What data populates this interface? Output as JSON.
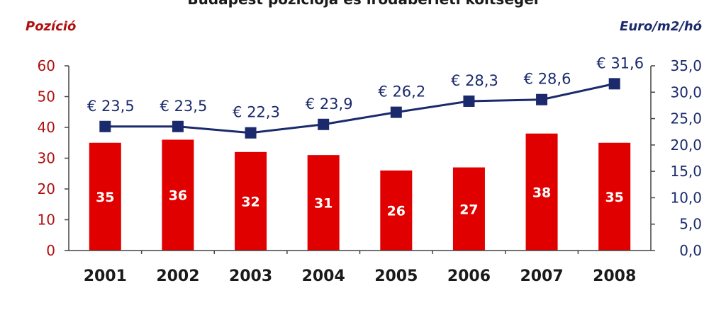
{
  "colors": {
    "bar": "#e00000",
    "line": "#1a2a6c",
    "left_axis_text": "#b01010",
    "right_axis_text": "#1a2a6c",
    "category_text": "#1a1a1a"
  },
  "chart_data": {
    "type": "bar",
    "title": "Budapest pozíciója és irodabérleti költségei",
    "categories": [
      "2001",
      "2002",
      "2003",
      "2004",
      "2005",
      "2006",
      "2007",
      "2008"
    ],
    "series": [
      {
        "name": "Pozíció",
        "type": "bar",
        "axis": "left",
        "values": [
          35,
          36,
          32,
          31,
          26,
          27,
          38,
          35
        ],
        "value_labels": [
          "35",
          "36",
          "32",
          "31",
          "26",
          "27",
          "38",
          "35"
        ]
      },
      {
        "name": "Euro/m2/hó",
        "type": "line",
        "axis": "right",
        "values": [
          23.5,
          23.5,
          22.3,
          23.9,
          26.2,
          28.3,
          28.6,
          31.6
        ],
        "value_labels": [
          "€ 23,5",
          "€ 23,5",
          "€ 22,3",
          "€ 23,9",
          "€ 26,2",
          "€ 28,3",
          "€ 28,6",
          "€ 31,6"
        ]
      }
    ],
    "left_axis": {
      "label": "Pozíció",
      "ylim": [
        0,
        60
      ],
      "ticks": [
        "0",
        "10",
        "20",
        "30",
        "40",
        "50",
        "60"
      ]
    },
    "right_axis": {
      "label": "Euro/m2/hó",
      "ylim": [
        0,
        35
      ],
      "ticks": [
        "0,0",
        "5,0",
        "10,0",
        "15,0",
        "20,0",
        "25,0",
        "30,0",
        "35,0"
      ]
    },
    "grid": false
  }
}
